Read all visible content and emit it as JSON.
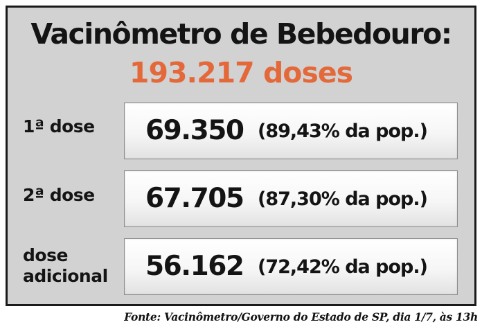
{
  "title": "Vacinômetro de Bebedouro:",
  "total": "193.217 doses",
  "rows": [
    {
      "label_line1": "1ª dose",
      "label_line2": "",
      "value": "69.350",
      "percent": "(89,43% da pop.)"
    },
    {
      "label_line1": "2ª dose",
      "label_line2": "",
      "value": "67.705",
      "percent": "(87,30% da pop.)"
    },
    {
      "label_line1": "dose",
      "label_line2": "adicional",
      "value": "56.162",
      "percent": "(72,42% da pop.)"
    }
  ],
  "source": "Fonte: Vacinômetro/Governo do Estado de SP, dia 1/7, às 13h",
  "colors": {
    "accent": "#e4693a",
    "panel": "#d2d2d2",
    "text": "#141414"
  }
}
